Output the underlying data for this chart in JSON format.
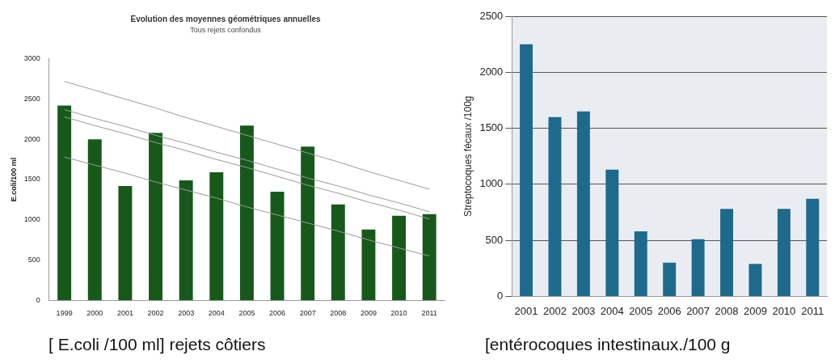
{
  "chart_data": [
    {
      "type": "bar",
      "title": "Evolution des moyennes géométriques annuelles",
      "subtitle": "Tous rejets confondus",
      "ylabel": "E.coli/100 ml",
      "categories": [
        "1999",
        "2000",
        "2001",
        "2002",
        "2003",
        "2004",
        "2005",
        "2006",
        "2007",
        "2008",
        "2009",
        "2010",
        "2011"
      ],
      "series": [
        {
          "color": "#17591b",
          "values": [
            2420,
            2000,
            1420,
            2080,
            1490,
            1590,
            2170,
            1350,
            1910,
            1190,
            880,
            1050,
            1070
          ]
        },
        {
          "type": "line",
          "color": "#9a9a9a",
          "values": [
            2720,
            2610,
            2500,
            2390,
            2270,
            2160,
            2050,
            1940,
            1830,
            1720,
            1600,
            1490,
            1380
          ]
        },
        {
          "type": "line",
          "color": "#9a9a9a",
          "values": [
            2370,
            2260,
            2160,
            2050,
            1950,
            1840,
            1740,
            1630,
            1520,
            1420,
            1310,
            1210,
            1100
          ]
        },
        {
          "type": "line",
          "color": "#9a9a9a",
          "values": [
            2280,
            2170,
            2070,
            1960,
            1860,
            1750,
            1650,
            1540,
            1430,
            1330,
            1220,
            1120,
            1010
          ]
        },
        {
          "type": "line",
          "color": "#9a9a9a",
          "values": [
            1780,
            1680,
            1580,
            1470,
            1370,
            1270,
            1160,
            1060,
            960,
            860,
            750,
            650,
            550
          ]
        }
      ],
      "ylim": [
        0,
        3000
      ],
      "yticks": [
        0,
        500,
        1000,
        1500,
        2000,
        2500,
        3000
      ],
      "grid": false,
      "annotations": [
        "[  E.coli /100 ml]   rejets côtiers"
      ]
    },
    {
      "type": "bar",
      "ylabel": "Streptocoques fécaux /100g",
      "categories": [
        "2001",
        "2002",
        "2003",
        "2004",
        "2005",
        "2006",
        "2007",
        "2008",
        "2009",
        "2010",
        "2011"
      ],
      "series": [
        {
          "color": "#1d6a8c",
          "values": [
            2250,
            1600,
            1650,
            1130,
            580,
            300,
            510,
            780,
            290,
            780,
            870
          ]
        }
      ],
      "ylim": [
        0,
        2500
      ],
      "yticks": [
        0,
        500,
        1000,
        1500,
        2000,
        2500
      ],
      "grid": "y",
      "annotations": [
        "[entérocoques intestinaux./100 g"
      ]
    }
  ]
}
